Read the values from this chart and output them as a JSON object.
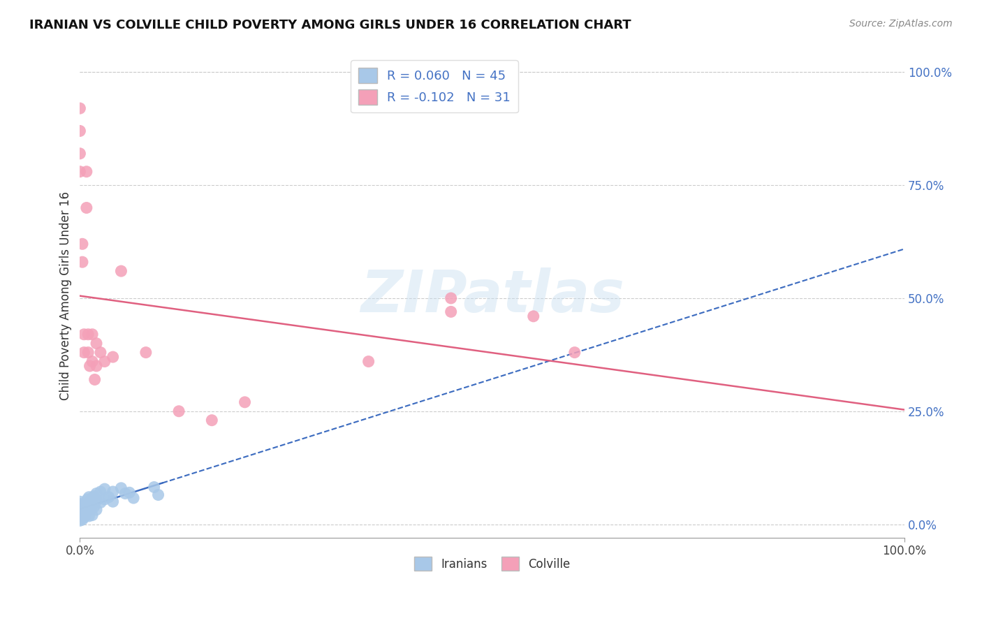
{
  "title": "IRANIAN VS COLVILLE CHILD POVERTY AMONG GIRLS UNDER 16 CORRELATION CHART",
  "source": "Source: ZipAtlas.com",
  "ylabel": "Child Poverty Among Girls Under 16",
  "iranian_R": 0.06,
  "iranian_N": 45,
  "colville_R": -0.102,
  "colville_N": 31,
  "iranian_color": "#a8c8e8",
  "colville_color": "#f4a0b8",
  "iranian_line_color": "#3a6abf",
  "colville_line_color": "#e06080",
  "bg_color": "#ffffff",
  "ytick_vals": [
    0,
    0.25,
    0.5,
    0.75,
    1.0
  ],
  "ytick_labels": [
    "0.0%",
    "25.0%",
    "50.0%",
    "75.0%",
    "100.0%"
  ],
  "iranian_x": [
    0.0,
    0.0,
    0.0,
    0.0,
    0.0,
    0.0,
    0.003,
    0.003,
    0.003,
    0.003,
    0.005,
    0.005,
    0.005,
    0.007,
    0.007,
    0.009,
    0.009,
    0.009,
    0.011,
    0.011,
    0.011,
    0.011,
    0.013,
    0.013,
    0.015,
    0.015,
    0.015,
    0.017,
    0.017,
    0.02,
    0.02,
    0.02,
    0.025,
    0.025,
    0.03,
    0.03,
    0.035,
    0.04,
    0.04,
    0.05,
    0.055,
    0.06,
    0.065,
    0.09,
    0.095
  ],
  "iranian_y": [
    0.05,
    0.045,
    0.038,
    0.032,
    0.02,
    0.008,
    0.042,
    0.035,
    0.025,
    0.01,
    0.04,
    0.028,
    0.015,
    0.038,
    0.02,
    0.055,
    0.042,
    0.028,
    0.06,
    0.048,
    0.035,
    0.018,
    0.052,
    0.032,
    0.058,
    0.042,
    0.02,
    0.062,
    0.038,
    0.068,
    0.052,
    0.032,
    0.072,
    0.048,
    0.078,
    0.055,
    0.06,
    0.072,
    0.05,
    0.08,
    0.068,
    0.07,
    0.058,
    0.082,
    0.065
  ],
  "colville_x": [
    0.0,
    0.0,
    0.0,
    0.0,
    0.003,
    0.003,
    0.005,
    0.005,
    0.008,
    0.008,
    0.01,
    0.01,
    0.012,
    0.015,
    0.015,
    0.018,
    0.02,
    0.02,
    0.025,
    0.03,
    0.04,
    0.05,
    0.08,
    0.12,
    0.16,
    0.2,
    0.35,
    0.45,
    0.45,
    0.55,
    0.6
  ],
  "colville_y": [
    0.92,
    0.87,
    0.82,
    0.78,
    0.62,
    0.58,
    0.42,
    0.38,
    0.78,
    0.7,
    0.42,
    0.38,
    0.35,
    0.42,
    0.36,
    0.32,
    0.4,
    0.35,
    0.38,
    0.36,
    0.37,
    0.56,
    0.38,
    0.25,
    0.23,
    0.27,
    0.36,
    0.5,
    0.47,
    0.46,
    0.38
  ]
}
